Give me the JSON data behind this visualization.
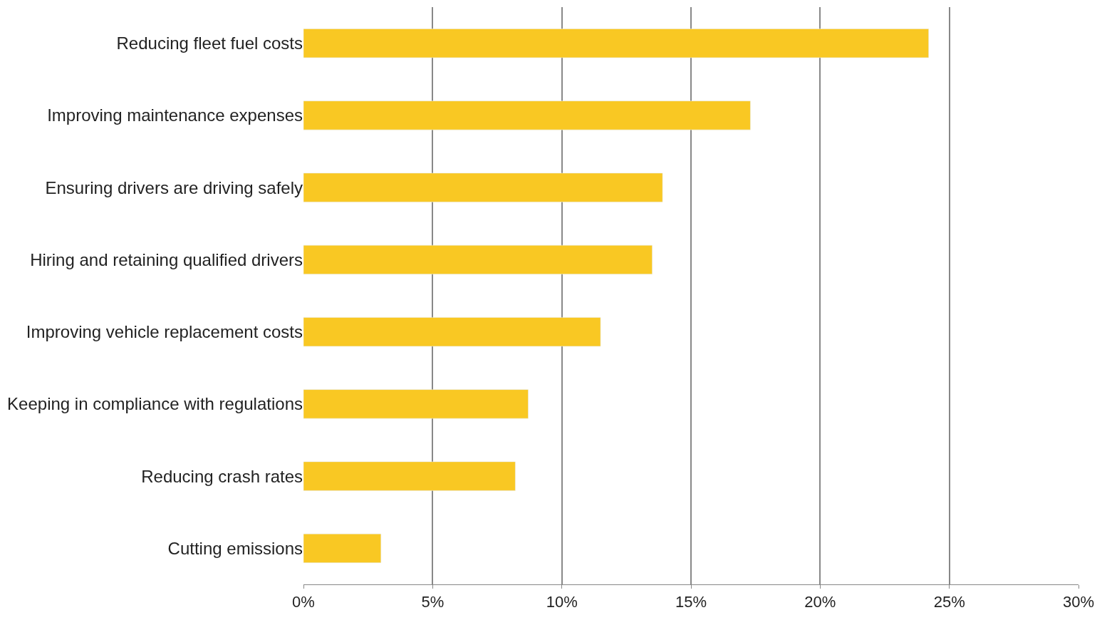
{
  "chart_data": {
    "type": "bar",
    "orientation": "horizontal",
    "categories": [
      "Reducing fleet fuel costs",
      "Improving maintenance expenses",
      "Ensuring drivers are driving safely",
      "Hiring and retaining qualified drivers",
      "Improving vehicle replacement costs",
      "Keeping in compliance with regulations",
      "Reducing crash rates",
      "Cutting emissions"
    ],
    "values": [
      24.2,
      17.3,
      13.9,
      13.5,
      11.5,
      8.7,
      8.2,
      3.0
    ],
    "color": "#f9c823",
    "xlim": [
      0,
      30
    ],
    "xticks": [
      {
        "value": 0,
        "label": "0%"
      },
      {
        "value": 5,
        "label": "5%"
      },
      {
        "value": 10,
        "label": "10%"
      },
      {
        "value": 15,
        "label": "15%"
      },
      {
        "value": 20,
        "label": "20%"
      },
      {
        "value": 25,
        "label": "25%"
      },
      {
        "value": 30,
        "label": "30%"
      }
    ],
    "grid": "x"
  }
}
